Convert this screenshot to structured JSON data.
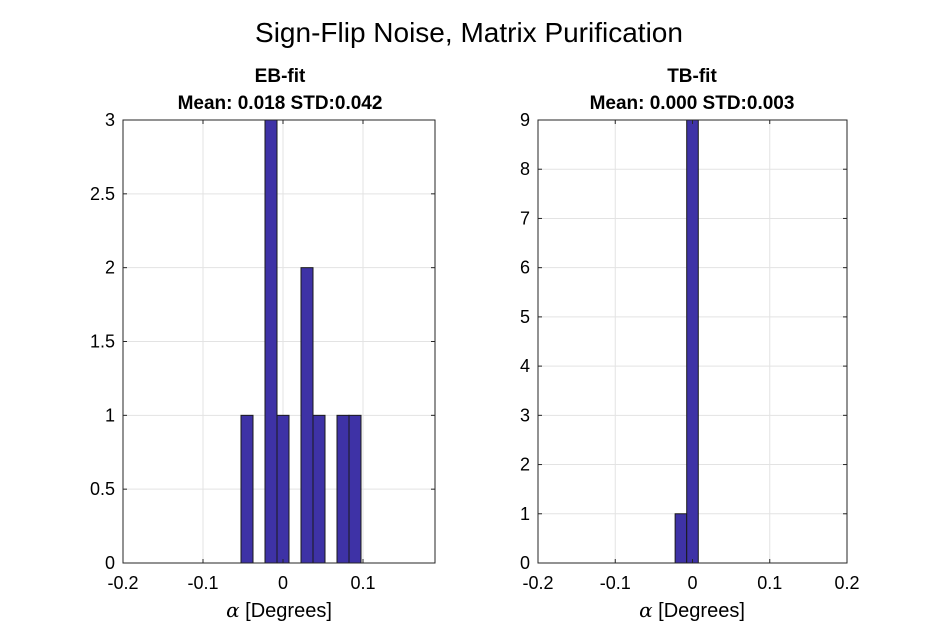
{
  "figure_title": "Sign-Flip Noise, Matrix Purification",
  "colors": {
    "bar_fill": "#3e32a6",
    "bar_edge": "#1a1a1a"
  },
  "chart_data": [
    {
      "type": "bar",
      "title": "EB-fit",
      "subtitle": "Mean: 0.018 STD:0.042",
      "xlabel_symbol": "α",
      "xlabel_text": " [Degrees]",
      "xlim": [
        -0.2,
        0.19
      ],
      "ylim": [
        0,
        3
      ],
      "xticks": [
        -0.2,
        -0.1,
        0,
        0.1
      ],
      "xtick_labels": [
        "-0.2",
        "-0.1",
        "0",
        "0.1"
      ],
      "yticks": [
        0,
        0.5,
        1,
        1.5,
        2,
        2.5,
        3
      ],
      "ytick_labels": [
        "0",
        "0.5",
        "1",
        "1.5",
        "2",
        "2.5",
        "3"
      ],
      "grid": true,
      "bin_width": 0.015,
      "bins": [
        {
          "x": -0.045,
          "count": 1
        },
        {
          "x": -0.015,
          "count": 3
        },
        {
          "x": 0.0,
          "count": 1
        },
        {
          "x": 0.03,
          "count": 2
        },
        {
          "x": 0.045,
          "count": 1
        },
        {
          "x": 0.075,
          "count": 1
        },
        {
          "x": 0.09,
          "count": 1
        }
      ]
    },
    {
      "type": "bar",
      "title": "TB-fit",
      "subtitle": "Mean: 0.000 STD:0.003",
      "xlabel_symbol": "α",
      "xlabel_text": " [Degrees]",
      "xlim": [
        -0.2,
        0.2
      ],
      "ylim": [
        0,
        9
      ],
      "xticks": [
        -0.2,
        -0.1,
        0,
        0.1,
        0.2
      ],
      "xtick_labels": [
        "-0.2",
        "-0.1",
        "0",
        "0.1",
        "0.2"
      ],
      "yticks": [
        0,
        1,
        2,
        3,
        4,
        5,
        6,
        7,
        8,
        9
      ],
      "ytick_labels": [
        "0",
        "1",
        "2",
        "3",
        "4",
        "5",
        "6",
        "7",
        "8",
        "9"
      ],
      "grid": true,
      "bin_width": 0.015,
      "bins": [
        {
          "x": -0.015,
          "count": 1
        },
        {
          "x": 0.0,
          "count": 9
        }
      ]
    }
  ]
}
